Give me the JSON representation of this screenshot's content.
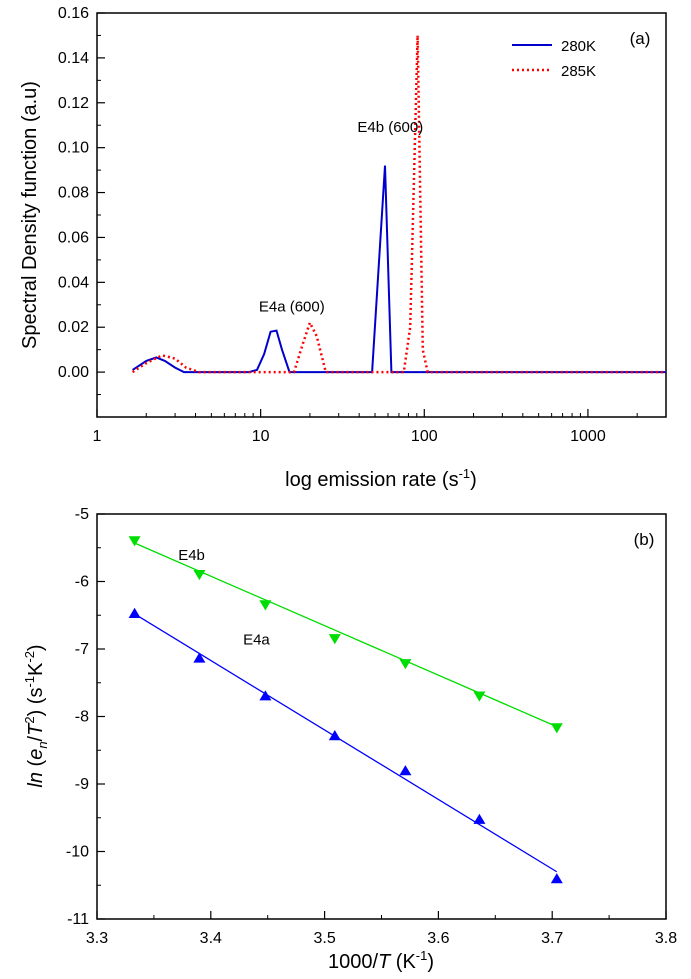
{
  "chart_data": [
    {
      "type": "line",
      "panel_label": "(a)",
      "xlabel": "log emission rate (s",
      "xlabel_sup": "-1",
      "xlabel_end": ")",
      "ylabel": "Spectral Density function (a.u)",
      "xscale": "log",
      "xlim": [
        1,
        3000
      ],
      "ylim": [
        -0.02,
        0.16
      ],
      "xticks": [
        1,
        10,
        100,
        1000
      ],
      "xtick_labels": [
        "1",
        "10",
        "100",
        "1000"
      ],
      "yticks": [
        0.0,
        0.02,
        0.04,
        0.06,
        0.08,
        0.1,
        0.12,
        0.14,
        0.16
      ],
      "ytick_labels": [
        "0.00",
        "0.02",
        "0.04",
        "0.06",
        "0.08",
        "0.10",
        "0.12",
        "0.14",
        "0.16"
      ],
      "grid": false,
      "legend_position": "top-right",
      "series": [
        {
          "name": "280K",
          "color": "#0000cc",
          "dash": "solid",
          "x": [
            1.65,
            2.0,
            2.3,
            2.6,
            3.0,
            3.4,
            4.0,
            8.5,
            9.5,
            10.5,
            11.5,
            12.5,
            13.5,
            15.0,
            20.0,
            48.0,
            57.5,
            63.0,
            100.0,
            1000.0,
            3000.0
          ],
          "y": [
            0.001,
            0.005,
            0.0065,
            0.005,
            0.002,
            0.0,
            0.0,
            0.0,
            0.001,
            0.008,
            0.018,
            0.0185,
            0.01,
            0.0,
            0.0,
            0.0,
            0.092,
            0.0,
            0.0,
            0.0,
            0.0
          ]
        },
        {
          "name": "285K",
          "color": "#ff0000",
          "dash": "dotted",
          "x": [
            1.65,
            2.0,
            2.5,
            3.0,
            3.5,
            4.2,
            5.0,
            16.0,
            18.0,
            20.0,
            22.0,
            25.0,
            75.0,
            82.0,
            91.0,
            98.0,
            105.0,
            1000.0,
            3000.0
          ],
          "y": [
            0.0,
            0.004,
            0.0075,
            0.006,
            0.002,
            0.0,
            0.0,
            0.0,
            0.012,
            0.022,
            0.016,
            0.0,
            0.0,
            0.02,
            0.15,
            0.01,
            0.0,
            0.0,
            0.0
          ]
        }
      ],
      "annotations": [
        {
          "text": "E4a (600)",
          "x": 15.5,
          "y": 0.027
        },
        {
          "text": "E4b (600)",
          "x": 62.0,
          "y": 0.107
        }
      ]
    },
    {
      "type": "scatter",
      "panel_label": "(b)",
      "xlabel": "1000/",
      "xlabel_italic": "T",
      "xlabel_end": " (K",
      "xlabel_sup": "-1",
      "xlabel_close": ")",
      "ylabel_prefix": "ln",
      "ylabel_paren": " (",
      "ylabel_en": "e",
      "ylabel_sub": "n",
      "ylabel_slash": "/",
      "ylabel_T": "T",
      "ylabel_sup2": "2",
      "ylabel_close": ") (s",
      "ylabel_sup_s": "-1",
      "ylabel_K": "K",
      "ylabel_sup_K": "-2",
      "ylabel_end": ")",
      "xlim": [
        3.3,
        3.8
      ],
      "ylim": [
        -11,
        -5
      ],
      "xticks": [
        3.3,
        3.4,
        3.5,
        3.6,
        3.7,
        3.8
      ],
      "xtick_labels": [
        "3.3",
        "3.4",
        "3.5",
        "3.6",
        "3.7",
        "3.8"
      ],
      "yticks": [
        -11,
        -10,
        -9,
        -8,
        -7,
        -6,
        -5
      ],
      "ytick_labels": [
        "-11",
        "-10",
        "-9",
        "-8",
        "-7",
        "-6",
        "-5"
      ],
      "grid": false,
      "series": [
        {
          "name": "E4b",
          "color": "#00dd00",
          "marker": "triangle-down",
          "x": [
            3.333,
            3.39,
            3.448,
            3.509,
            3.571,
            3.636,
            3.704
          ],
          "y": [
            -5.4,
            -5.9,
            -6.35,
            -6.85,
            -7.22,
            -7.7,
            -8.17
          ],
          "fit": {
            "x": [
              3.333,
              3.704
            ],
            "y": [
              -5.43,
              -8.15
            ]
          },
          "label_x": 3.345,
          "label_y": -5.68
        },
        {
          "name": "E4a",
          "color": "#0000ff",
          "marker": "triangle-up",
          "x": [
            3.333,
            3.39,
            3.448,
            3.509,
            3.571,
            3.636,
            3.704
          ],
          "y": [
            -6.47,
            -7.13,
            -7.69,
            -8.28,
            -8.8,
            -9.52,
            -10.4
          ],
          "fit": {
            "x": [
              3.333,
              3.704
            ],
            "y": [
              -6.48,
              -10.3
            ]
          },
          "label_x": 3.402,
          "label_y": -6.93
        }
      ]
    }
  ]
}
